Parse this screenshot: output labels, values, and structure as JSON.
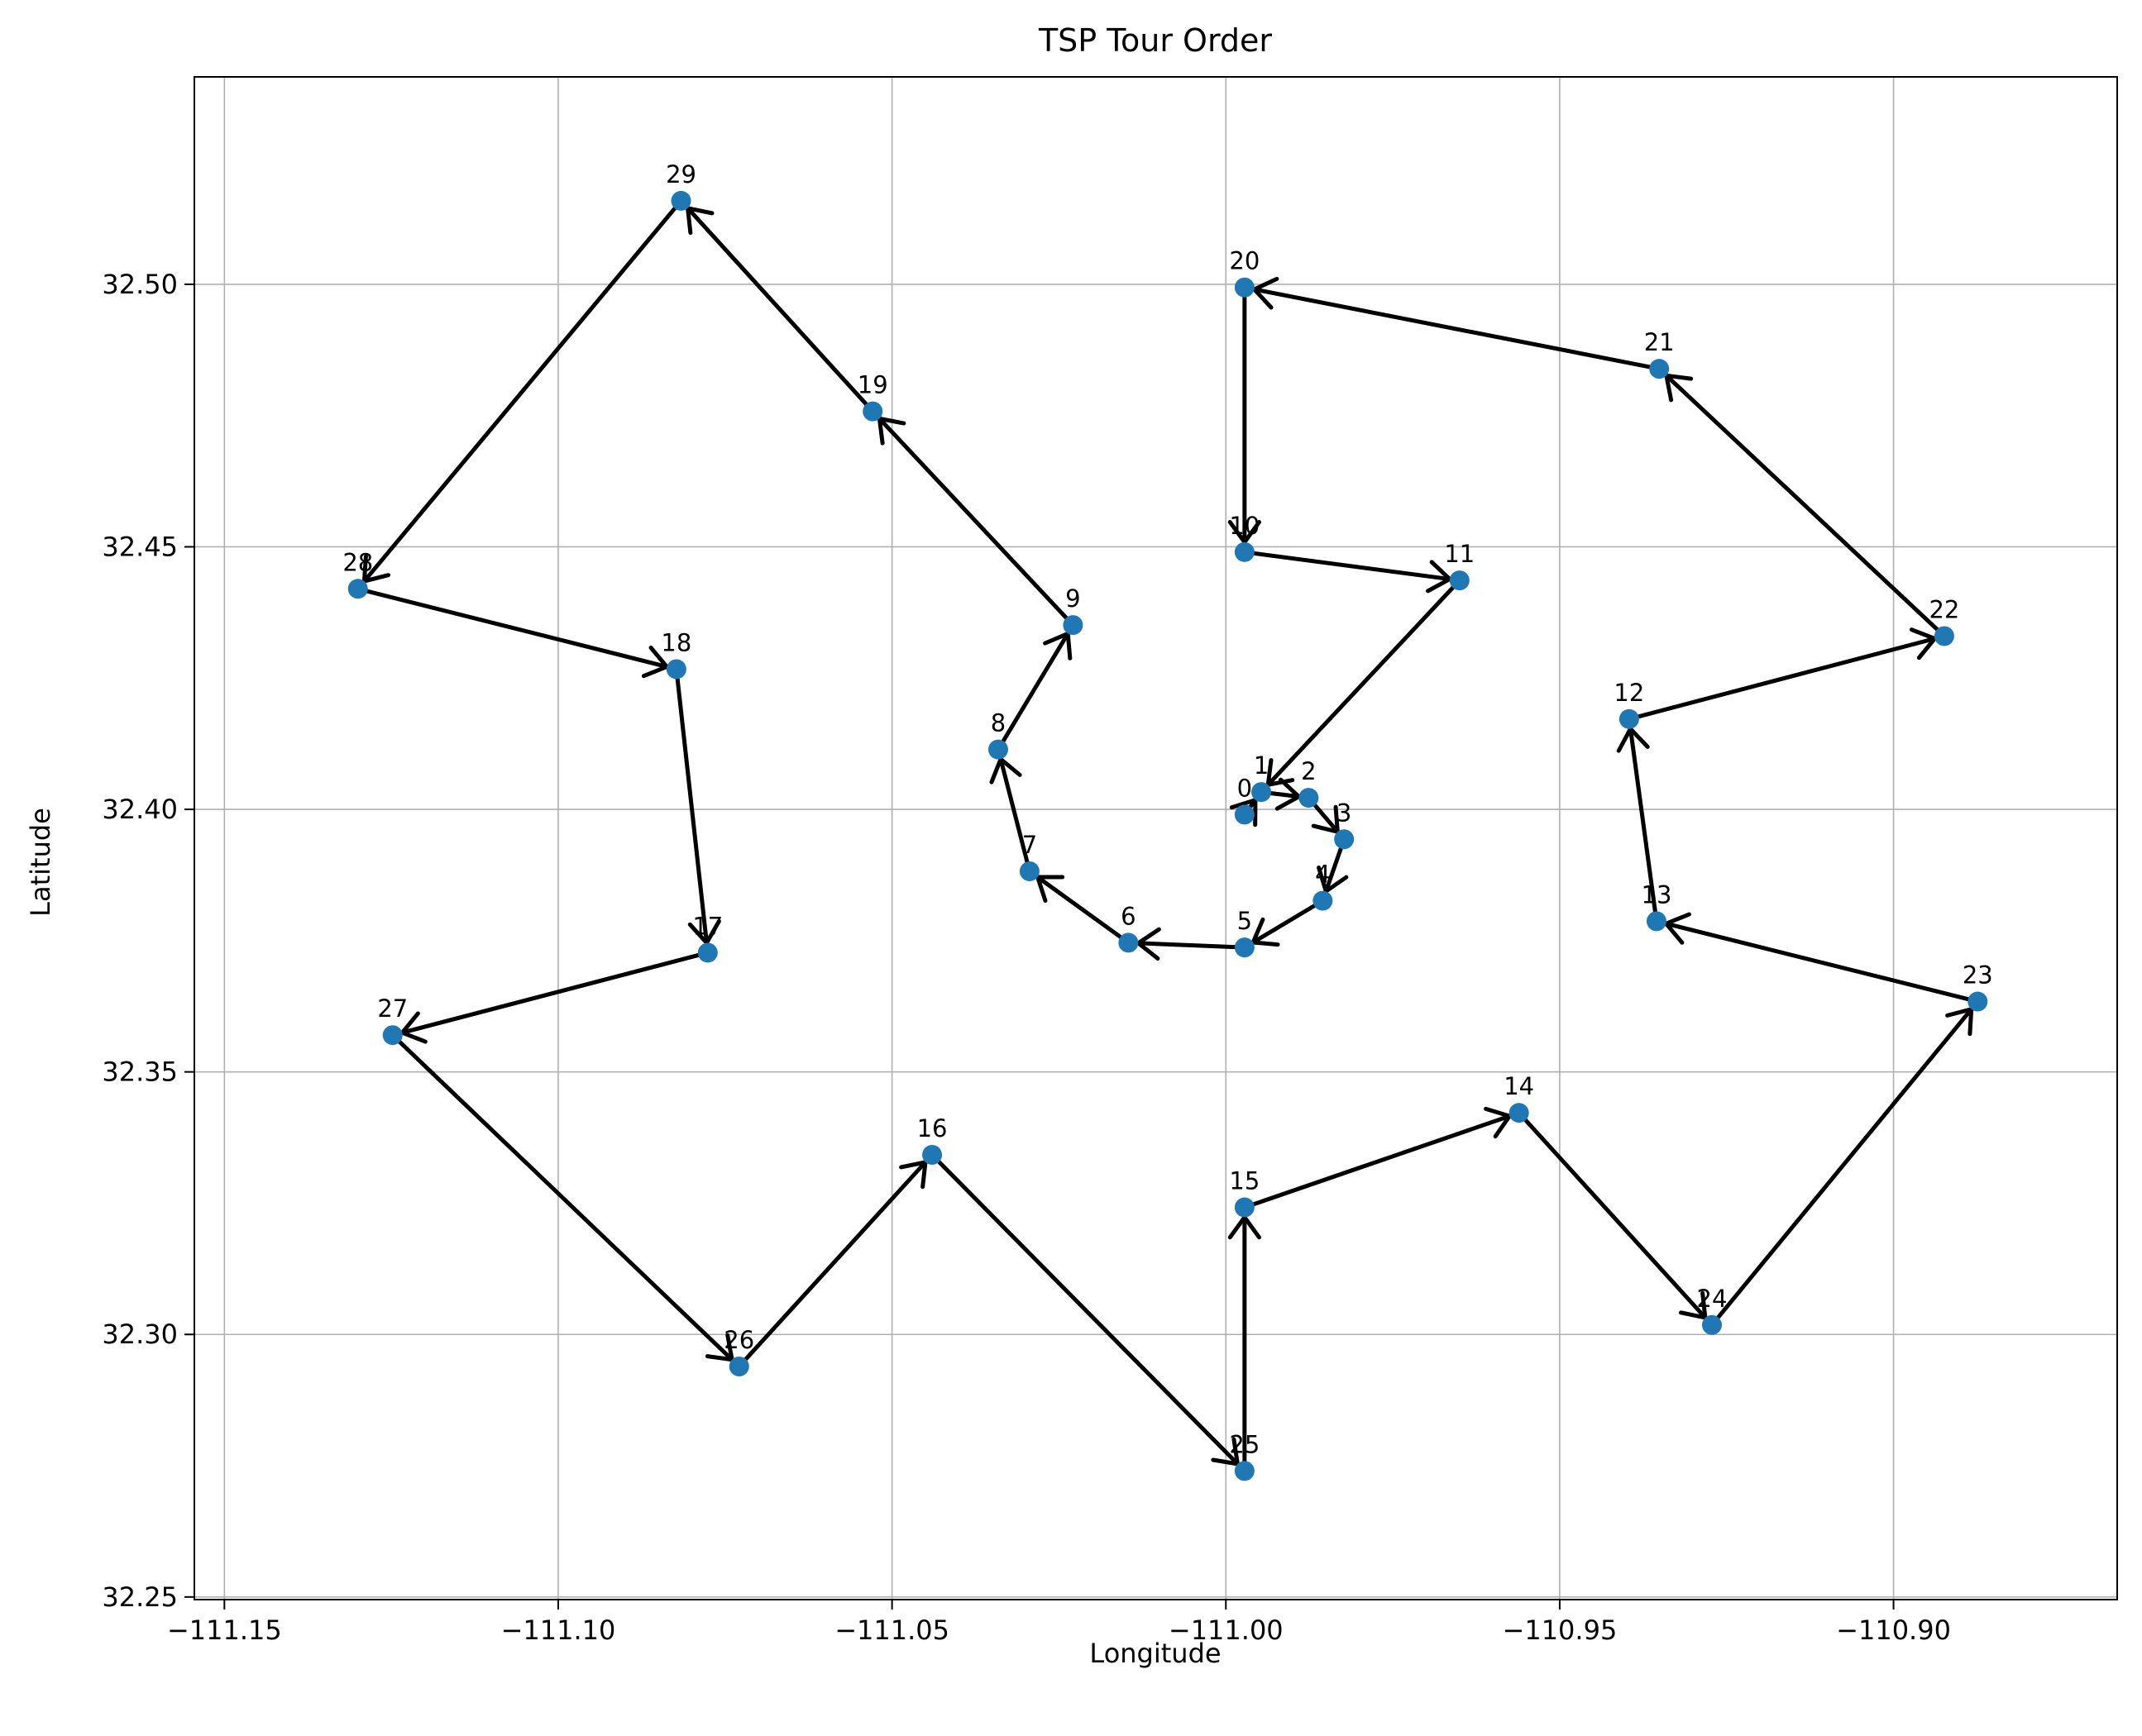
{
  "chart_data": {
    "type": "line",
    "title": "TSP Tour Order",
    "xlabel": "Longitude",
    "ylabel": "Latitude",
    "xlim": [
      -111.1545,
      -110.8665
    ],
    "ylim": [
      32.2495,
      32.5395
    ],
    "x_ticks": [
      -111.15,
      -111.1,
      -111.05,
      -111.0,
      -110.95,
      -110.9
    ],
    "x_tick_labels": [
      "−111.15",
      "−111.10",
      "−111.05",
      "−111.00",
      "−110.95",
      "−110.90"
    ],
    "y_ticks": [
      32.25,
      32.3,
      32.35,
      32.4,
      32.45,
      32.5
    ],
    "y_tick_labels": [
      "32.25",
      "32.30",
      "32.35",
      "32.40",
      "32.45",
      "32.50"
    ],
    "grid": true,
    "marker_color": "#1f77b4",
    "arrow_color": "#000000",
    "points": [
      {
        "label": "0",
        "x": -110.9972,
        "y": 32.399
      },
      {
        "label": "1",
        "x": -110.9947,
        "y": 32.4033
      },
      {
        "label": "2",
        "x": -110.9876,
        "y": 32.4022
      },
      {
        "label": "3",
        "x": -110.9823,
        "y": 32.3943
      },
      {
        "label": "4",
        "x": -110.9855,
        "y": 32.3826
      },
      {
        "label": "5",
        "x": -110.9972,
        "y": 32.3737
      },
      {
        "label": "6",
        "x": -111.0146,
        "y": 32.3746
      },
      {
        "label": "7",
        "x": -111.0294,
        "y": 32.3882
      },
      {
        "label": "8",
        "x": -111.0341,
        "y": 32.4114
      },
      {
        "label": "9",
        "x": -111.0229,
        "y": 32.4351
      },
      {
        "label": "10",
        "x": -110.9972,
        "y": 32.449
      },
      {
        "label": "11",
        "x": -110.965,
        "y": 32.4436
      },
      {
        "label": "12",
        "x": -110.9396,
        "y": 32.4172
      },
      {
        "label": "13",
        "x": -110.9355,
        "y": 32.3787
      },
      {
        "label": "14",
        "x": -110.9561,
        "y": 32.3422
      },
      {
        "label": "15",
        "x": -110.9972,
        "y": 32.3242
      },
      {
        "label": "16",
        "x": -111.044,
        "y": 32.3342
      },
      {
        "label": "17",
        "x": -111.0776,
        "y": 32.3727
      },
      {
        "label": "18",
        "x": -111.0823,
        "y": 32.4267
      },
      {
        "label": "19",
        "x": -111.0529,
        "y": 32.4758
      },
      {
        "label": "20",
        "x": -110.9972,
        "y": 32.4994
      },
      {
        "label": "21",
        "x": -110.9351,
        "y": 32.4839
      },
      {
        "label": "22",
        "x": -110.8924,
        "y": 32.433
      },
      {
        "label": "23",
        "x": -110.8874,
        "y": 32.3634
      },
      {
        "label": "24",
        "x": -110.9272,
        "y": 32.3018
      },
      {
        "label": "25",
        "x": -110.9972,
        "y": 32.274
      },
      {
        "label": "26",
        "x": -111.0729,
        "y": 32.2939
      },
      {
        "label": "27",
        "x": -111.1248,
        "y": 32.357
      },
      {
        "label": "28",
        "x": -111.13,
        "y": 32.442
      },
      {
        "label": "29",
        "x": -111.0816,
        "y": 32.5159
      }
    ],
    "tour_order": [
      0,
      1,
      2,
      3,
      4,
      5,
      6,
      7,
      8,
      9,
      19,
      29,
      28,
      18,
      17,
      27,
      26,
      16,
      25,
      15,
      14,
      24,
      23,
      13,
      12,
      22,
      21,
      20,
      10,
      11,
      1
    ]
  }
}
